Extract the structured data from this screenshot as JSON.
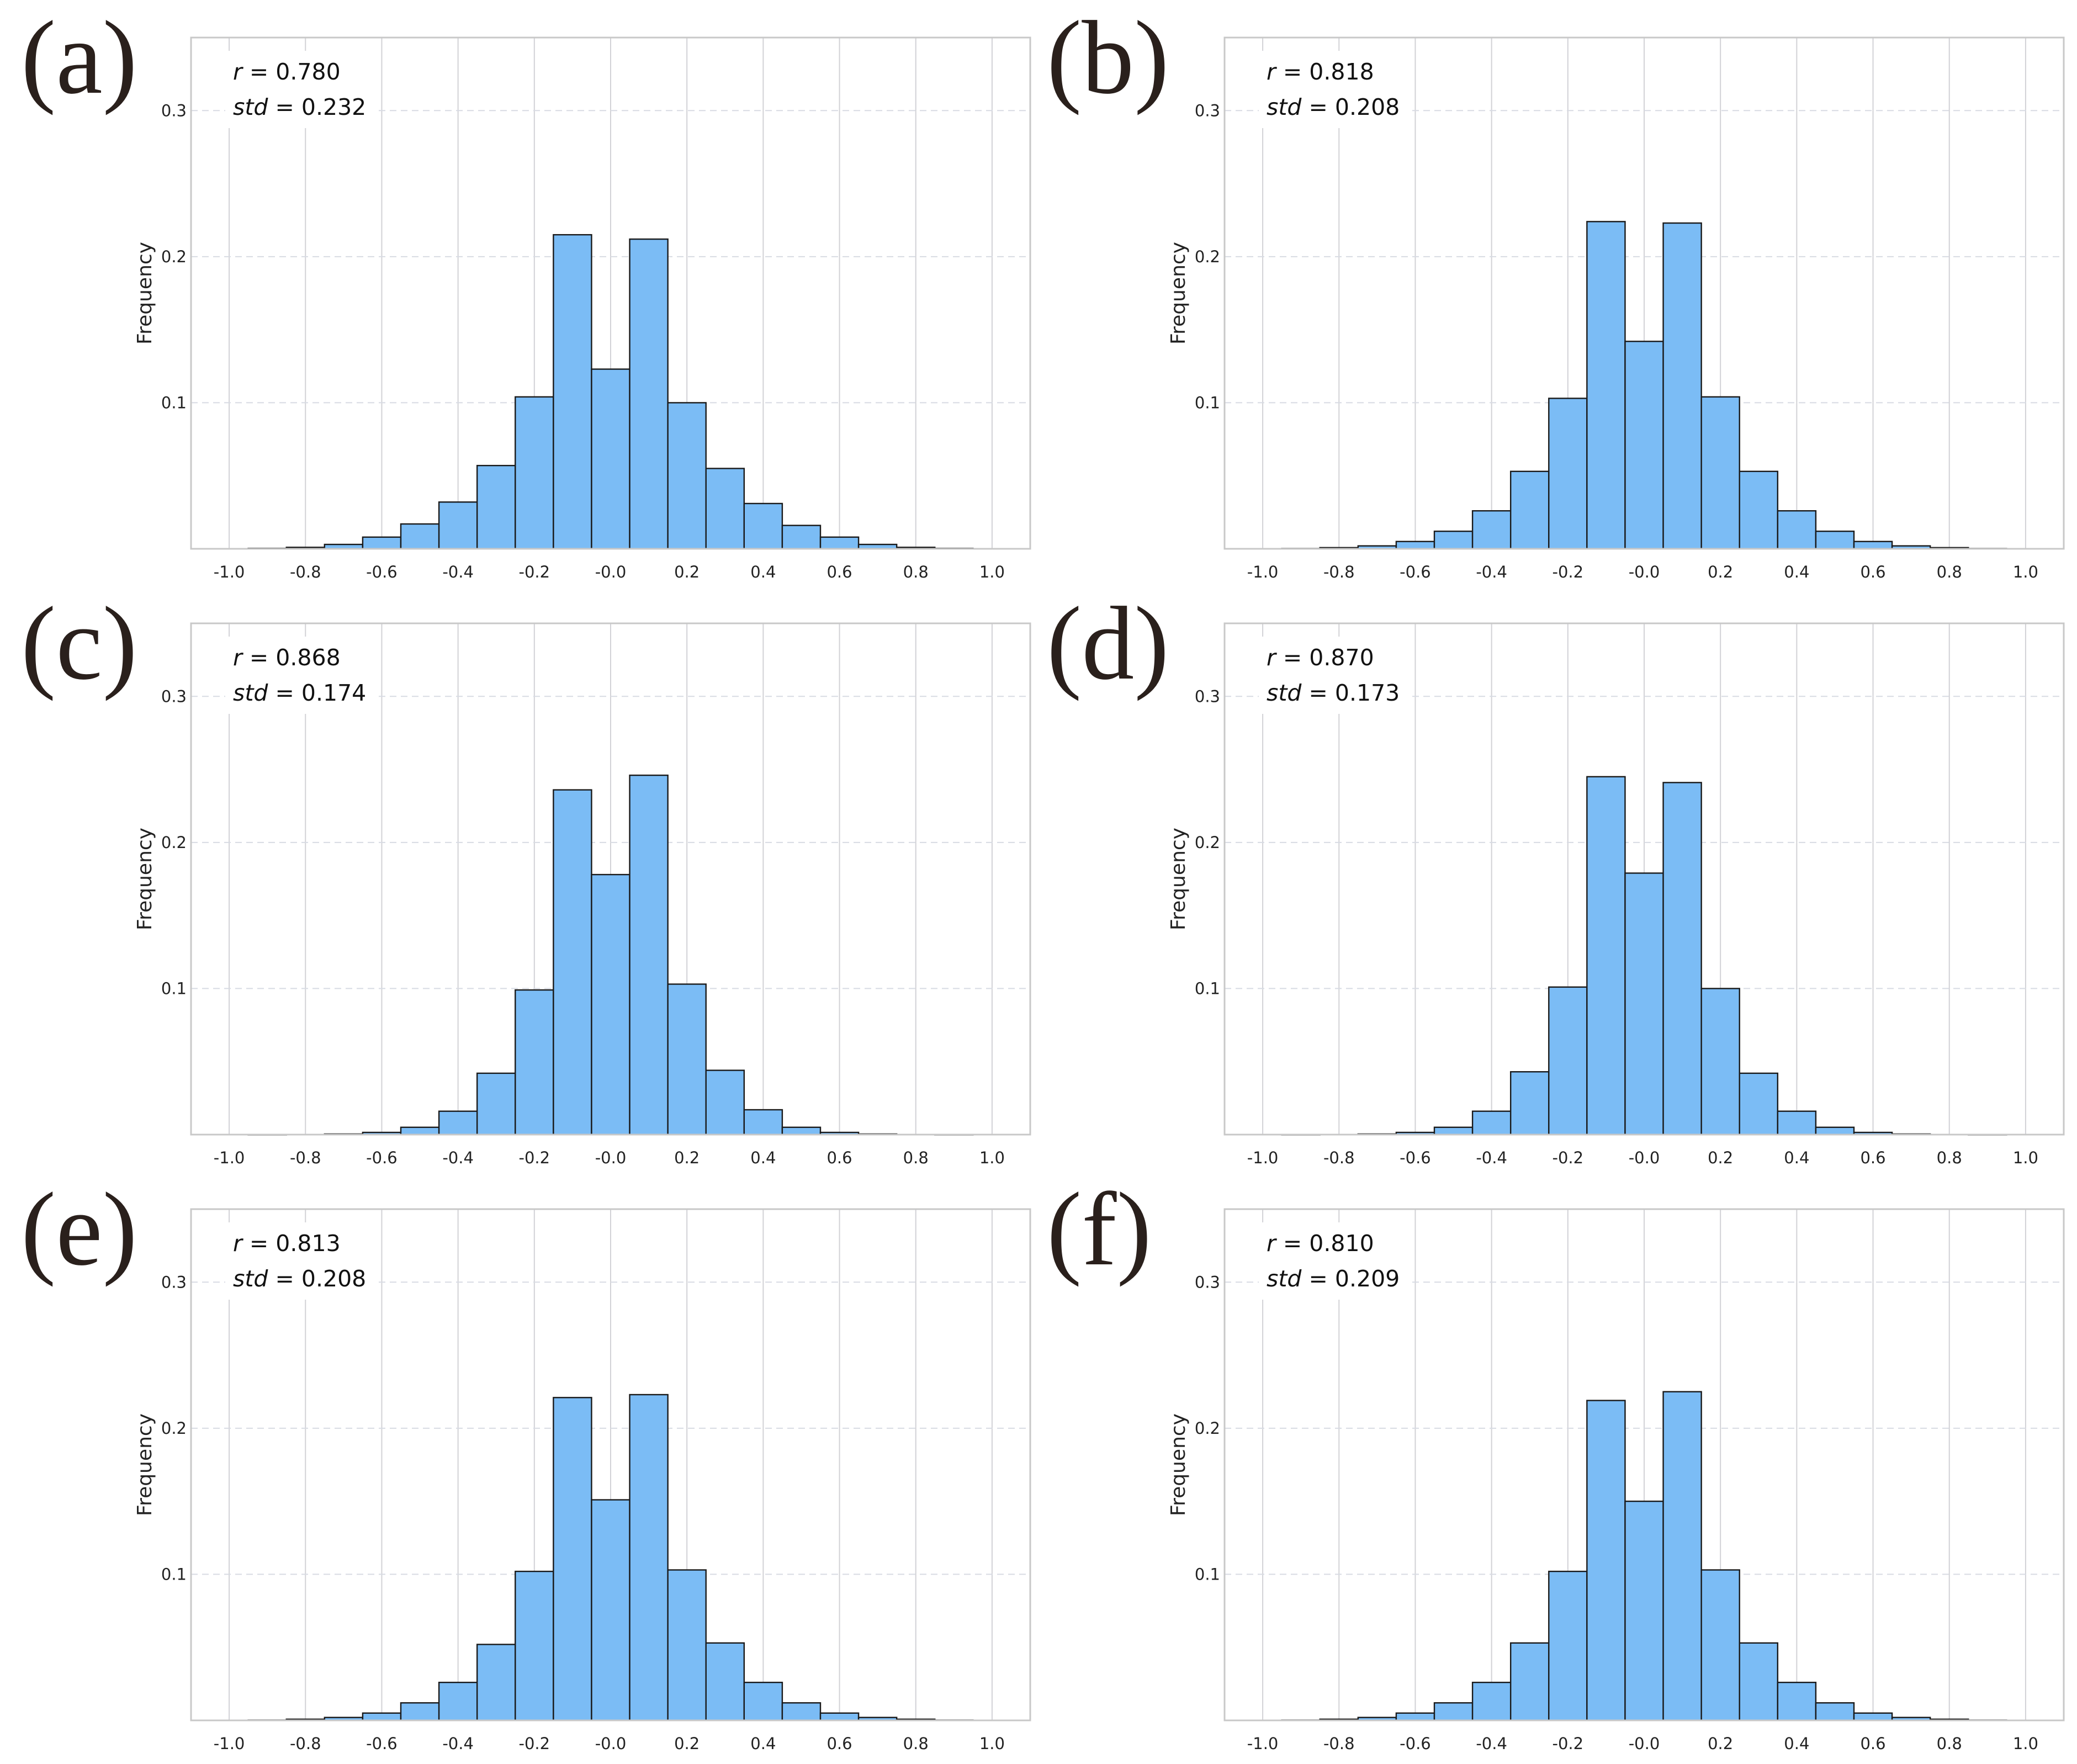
{
  "chart_data": [
    {
      "type": "bar",
      "panel_label": "(a)",
      "annotation_r": "0.780",
      "annotation_std": "0.232",
      "ylabel": "Frequency",
      "xlim": [
        -1.1,
        1.1
      ],
      "ylim": [
        0,
        0.35
      ],
      "xticks": [
        "-1.0",
        "-0.8",
        "-0.6",
        "-0.4",
        "-0.2",
        "-0.0",
        "0.2",
        "0.4",
        "0.6",
        "0.8",
        "1.0"
      ],
      "yticks": [
        "0.1",
        "0.2",
        "0.3"
      ],
      "grid": true,
      "bin_width": 0.1,
      "bin_starts": [
        -0.95,
        -0.85,
        -0.75,
        -0.65,
        -0.55,
        -0.45,
        -0.35,
        -0.25,
        -0.15,
        -0.05,
        0.05,
        0.15,
        0.25,
        0.35,
        0.45,
        0.55,
        0.65,
        0.75,
        0.85
      ],
      "values": [
        0.0003,
        0.001,
        0.003,
        0.008,
        0.017,
        0.032,
        0.057,
        0.104,
        0.215,
        0.123,
        0.212,
        0.1,
        0.055,
        0.031,
        0.016,
        0.008,
        0.003,
        0.001,
        0.0003
      ]
    },
    {
      "type": "bar",
      "panel_label": "(b)",
      "annotation_r": "0.818",
      "annotation_std": "0.208",
      "ylabel": "Frequency",
      "xlim": [
        -1.1,
        1.1
      ],
      "ylim": [
        0,
        0.35
      ],
      "xticks": [
        "-1.0",
        "-0.8",
        "-0.6",
        "-0.4",
        "-0.2",
        "-0.0",
        "0.2",
        "0.4",
        "0.6",
        "0.8",
        "1.0"
      ],
      "yticks": [
        "0.1",
        "0.2",
        "0.3"
      ],
      "grid": true,
      "bin_width": 0.1,
      "bin_starts": [
        -0.95,
        -0.85,
        -0.75,
        -0.65,
        -0.55,
        -0.45,
        -0.35,
        -0.25,
        -0.15,
        -0.05,
        0.05,
        0.15,
        0.25,
        0.35,
        0.45,
        0.55,
        0.65,
        0.75,
        0.85
      ],
      "values": [
        0.0002,
        0.0008,
        0.002,
        0.005,
        0.012,
        0.026,
        0.053,
        0.103,
        0.224,
        0.142,
        0.223,
        0.104,
        0.053,
        0.026,
        0.012,
        0.005,
        0.002,
        0.0008,
        0.0002
      ]
    },
    {
      "type": "bar",
      "panel_label": "(c)",
      "annotation_r": "0.868",
      "annotation_std": "0.174",
      "ylabel": "Frequency",
      "xlim": [
        -1.1,
        1.1
      ],
      "ylim": [
        0,
        0.35
      ],
      "xticks": [
        "-1.0",
        "-0.8",
        "-0.6",
        "-0.4",
        "-0.2",
        "-0.0",
        "0.2",
        "0.4",
        "0.6",
        "0.8",
        "1.0"
      ],
      "yticks": [
        "0.1",
        "0.2",
        "0.3"
      ],
      "grid": true,
      "bin_width": 0.1,
      "bin_starts": [
        -0.95,
        -0.85,
        -0.75,
        -0.65,
        -0.55,
        -0.45,
        -0.35,
        -0.25,
        -0.15,
        -0.05,
        0.05,
        0.15,
        0.25,
        0.35,
        0.45,
        0.55,
        0.65,
        0.75,
        0.85
      ],
      "values": [
        0.0,
        0.0001,
        0.0004,
        0.0015,
        0.005,
        0.016,
        0.042,
        0.099,
        0.236,
        0.178,
        0.246,
        0.103,
        0.044,
        0.017,
        0.005,
        0.0015,
        0.0004,
        0.0001,
        0.0
      ]
    },
    {
      "type": "bar",
      "panel_label": "(d)",
      "annotation_r": "0.870",
      "annotation_std": "0.173",
      "ylabel": "Frequency",
      "xlim": [
        -1.1,
        1.1
      ],
      "ylim": [
        0,
        0.35
      ],
      "xticks": [
        "-1.0",
        "-0.8",
        "-0.6",
        "-0.4",
        "-0.2",
        "-0.0",
        "0.2",
        "0.4",
        "0.6",
        "0.8",
        "1.0"
      ],
      "yticks": [
        "0.1",
        "0.2",
        "0.3"
      ],
      "grid": true,
      "bin_width": 0.1,
      "bin_starts": [
        -0.95,
        -0.85,
        -0.75,
        -0.65,
        -0.55,
        -0.45,
        -0.35,
        -0.25,
        -0.15,
        -0.05,
        0.05,
        0.15,
        0.25,
        0.35,
        0.45,
        0.55,
        0.65,
        0.75,
        0.85
      ],
      "values": [
        0.0,
        0.0001,
        0.0004,
        0.0015,
        0.005,
        0.016,
        0.043,
        0.101,
        0.245,
        0.179,
        0.241,
        0.1,
        0.042,
        0.016,
        0.005,
        0.0015,
        0.0004,
        0.0001,
        0.0
      ]
    },
    {
      "type": "bar",
      "panel_label": "(e)",
      "annotation_r": "0.813",
      "annotation_std": "0.208",
      "ylabel": "Frequency",
      "xlim": [
        -1.1,
        1.1
      ],
      "ylim": [
        0,
        0.35
      ],
      "xticks": [
        "-1.0",
        "-0.8",
        "-0.6",
        "-0.4",
        "-0.2",
        "-0.0",
        "0.2",
        "0.4",
        "0.6",
        "0.8",
        "1.0"
      ],
      "yticks": [
        "0.1",
        "0.2",
        "0.3"
      ],
      "grid": true,
      "bin_width": 0.1,
      "bin_starts": [
        -0.95,
        -0.85,
        -0.75,
        -0.65,
        -0.55,
        -0.45,
        -0.35,
        -0.25,
        -0.15,
        -0.05,
        0.05,
        0.15,
        0.25,
        0.35,
        0.45,
        0.55,
        0.65,
        0.75,
        0.85
      ],
      "values": [
        0.0002,
        0.0008,
        0.002,
        0.005,
        0.012,
        0.026,
        0.052,
        0.102,
        0.221,
        0.151,
        0.223,
        0.103,
        0.053,
        0.026,
        0.012,
        0.005,
        0.002,
        0.0008,
        0.0002
      ]
    },
    {
      "type": "bar",
      "panel_label": "(f)",
      "annotation_r": "0.810",
      "annotation_std": "0.209",
      "ylabel": "Frequency",
      "xlim": [
        -1.1,
        1.1
      ],
      "ylim": [
        0,
        0.35
      ],
      "xticks": [
        "-1.0",
        "-0.8",
        "-0.6",
        "-0.4",
        "-0.2",
        "-0.0",
        "0.2",
        "0.4",
        "0.6",
        "0.8",
        "1.0"
      ],
      "yticks": [
        "0.1",
        "0.2",
        "0.3"
      ],
      "grid": true,
      "bin_width": 0.1,
      "bin_starts": [
        -0.95,
        -0.85,
        -0.75,
        -0.65,
        -0.55,
        -0.45,
        -0.35,
        -0.25,
        -0.15,
        -0.05,
        0.05,
        0.15,
        0.25,
        0.35,
        0.45,
        0.55,
        0.65,
        0.75,
        0.85
      ],
      "values": [
        0.0002,
        0.0008,
        0.002,
        0.005,
        0.012,
        0.026,
        0.053,
        0.102,
        0.219,
        0.15,
        0.225,
        0.103,
        0.053,
        0.026,
        0.012,
        0.005,
        0.002,
        0.0008,
        0.0002
      ]
    }
  ],
  "colors": {
    "bar_fill": "#7bbcf5",
    "bar_edge": "#1a1a1a",
    "grid_vertical": "#d2d2d6",
    "grid_horizontal": "#d8dbe3",
    "frame": "#c8c8c8"
  },
  "annotation_labels": {
    "r": "r",
    "std": "std",
    "equals": " = "
  }
}
